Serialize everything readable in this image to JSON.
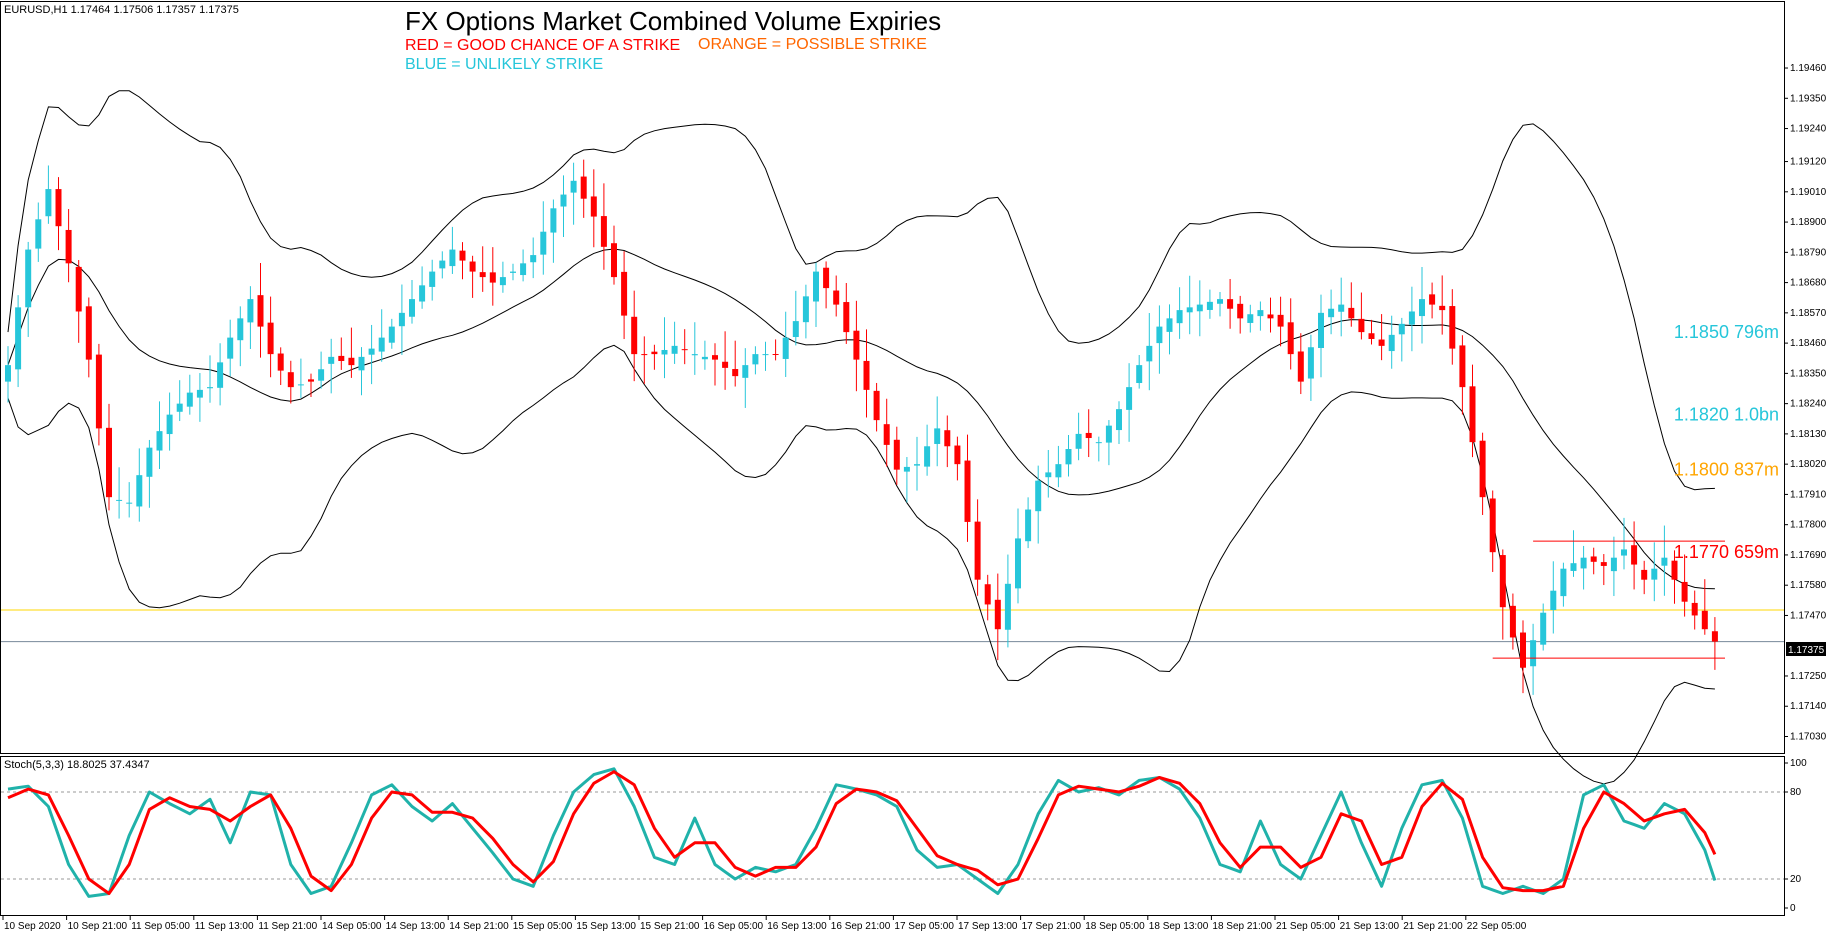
{
  "symbol_header": "EURUSD,H1  1.17464 1.17506 1.17357 1.17375",
  "stoch_header": "Stoch(5,3,3) 18.8025 37.4347",
  "colors": {
    "up": "#26c6da",
    "down": "#ff0000",
    "bands": "#000000",
    "stoch_main": "#20b2aa",
    "stoch_signal": "#ff0000",
    "level_yellow": "#ffd700",
    "price_line": "#778899",
    "strike_blue": "#26c6da",
    "strike_orange": "#ffa500",
    "strike_red": "#ff0000"
  },
  "chart_data": [
    {
      "type": "candlestick",
      "title": "FX Options Market Combined Volume Expiries",
      "legend": [
        {
          "text": "RED = GOOD CHANCE OF A STRIKE",
          "color": "#ff0000"
        },
        {
          "text": "ORANGE = POSSIBLE STRIKE",
          "color": "#ff6600"
        },
        {
          "text": "BLUE = UNLIKELY STRIKE",
          "color": "#26c6da"
        }
      ],
      "ylim": [
        1.1697,
        1.197
      ],
      "y_ticks": [
        "1.19460",
        "1.19350",
        "1.19240",
        "1.19120",
        "1.19010",
        "1.18900",
        "1.18790",
        "1.18680",
        "1.18570",
        "1.18460",
        "1.18350",
        "1.18240",
        "1.18130",
        "1.18020",
        "1.17910",
        "1.17800",
        "1.17690",
        "1.17580",
        "1.17470",
        "1.17250",
        "1.17140",
        "1.17030"
      ],
      "x_ticks": [
        "10 Sep 2020",
        "10 Sep 21:00",
        "11 Sep 05:00",
        "11 Sep 13:00",
        "11 Sep 21:00",
        "14 Sep 05:00",
        "14 Sep 13:00",
        "14 Sep 21:00",
        "15 Sep 05:00",
        "15 Sep 13:00",
        "15 Sep 21:00",
        "16 Sep 05:00",
        "16 Sep 13:00",
        "16 Sep 21:00",
        "17 Sep 05:00",
        "17 Sep 13:00",
        "17 Sep 21:00",
        "18 Sep 05:00",
        "18 Sep 13:00",
        "18 Sep 21:00",
        "21 Sep 05:00",
        "21 Sep 13:00",
        "21 Sep 21:00",
        "22 Sep 05:00"
      ],
      "current_price": "1.17375",
      "current_price_value": 1.17375,
      "strikes": [
        {
          "price": 1.185,
          "label": "1.1850 796m",
          "color": "#26c6da"
        },
        {
          "price": 1.182,
          "label": "1.1820 1.0bn",
          "color": "#26c6da"
        },
        {
          "price": 1.18,
          "label": "1.1800 837m",
          "color": "#ffa500"
        },
        {
          "price": 1.177,
          "label": "1.1770 659m",
          "color": "#ff0000"
        }
      ],
      "horizontal_levels": [
        {
          "price": 1.1749,
          "color": "#ffd700"
        },
        {
          "price": 1.17375,
          "color": "#778899"
        }
      ],
      "range_lines": [
        {
          "price": 1.1774,
          "from_bar": 151,
          "to_bar": 170,
          "color": "#ff0000"
        },
        {
          "price": 1.17315,
          "from_bar": 147,
          "to_bar": 170,
          "color": "#ff0000"
        }
      ],
      "close_path": [
        [
          0,
          1.1838
        ],
        [
          2,
          1.188
        ],
        [
          4,
          1.1902
        ],
        [
          6,
          1.1875
        ],
        [
          8,
          1.184
        ],
        [
          10,
          1.179
        ],
        [
          12,
          1.1788
        ],
        [
          14,
          1.1808
        ],
        [
          16,
          1.182
        ],
        [
          18,
          1.1828
        ],
        [
          20,
          1.183
        ],
        [
          22,
          1.1848
        ],
        [
          24,
          1.1862
        ],
        [
          26,
          1.1842
        ],
        [
          28,
          1.183
        ],
        [
          30,
          1.1832
        ],
        [
          32,
          1.1841
        ],
        [
          34,
          1.1838
        ],
        [
          36,
          1.1844
        ],
        [
          38,
          1.1852
        ],
        [
          40,
          1.1862
        ],
        [
          42,
          1.1872
        ],
        [
          44,
          1.188
        ],
        [
          46,
          1.1872
        ],
        [
          48,
          1.1868
        ],
        [
          50,
          1.1872
        ],
        [
          52,
          1.1878
        ],
        [
          54,
          1.1895
        ],
        [
          56,
          1.1905
        ],
        [
          58,
          1.1892
        ],
        [
          60,
          1.187
        ],
        [
          62,
          1.1842
        ],
        [
          64,
          1.1842
        ],
        [
          66,
          1.1845
        ],
        [
          68,
          1.1842
        ],
        [
          70,
          1.184
        ],
        [
          72,
          1.1834
        ],
        [
          74,
          1.1842
        ],
        [
          76,
          1.1842
        ],
        [
          78,
          1.1854
        ],
        [
          80,
          1.1872
        ],
        [
          82,
          1.186
        ],
        [
          84,
          1.184
        ],
        [
          86,
          1.1818
        ],
        [
          88,
          1.18
        ],
        [
          90,
          1.1802
        ],
        [
          92,
          1.1815
        ],
        [
          94,
          1.1802
        ],
        [
          96,
          1.176
        ],
        [
          98,
          1.1742
        ],
        [
          100,
          1.1775
        ],
        [
          102,
          1.1796
        ],
        [
          104,
          1.1802
        ],
        [
          106,
          1.1813
        ],
        [
          108,
          1.181
        ],
        [
          110,
          1.1822
        ],
        [
          112,
          1.1838
        ],
        [
          114,
          1.1852
        ],
        [
          116,
          1.1858
        ],
        [
          118,
          1.186
        ],
        [
          120,
          1.1862
        ],
        [
          122,
          1.1855
        ],
        [
          124,
          1.1858
        ],
        [
          126,
          1.1852
        ],
        [
          128,
          1.1832
        ],
        [
          130,
          1.1857
        ],
        [
          132,
          1.186
        ],
        [
          134,
          1.185
        ],
        [
          136,
          1.1845
        ],
        [
          138,
          1.1853
        ],
        [
          140,
          1.1862
        ],
        [
          142,
          1.1858
        ],
        [
          144,
          1.183
        ],
        [
          146,
          1.179
        ],
        [
          148,
          1.175
        ],
        [
          150,
          1.1728
        ],
        [
          152,
          1.1748
        ],
        [
          154,
          1.1764
        ],
        [
          156,
          1.1768
        ],
        [
          158,
          1.1765
        ],
        [
          160,
          1.1771
        ],
        [
          162,
          1.176
        ],
        [
          164,
          1.1768
        ],
        [
          166,
          1.1752
        ],
        [
          168,
          1.1742
        ],
        [
          169,
          1.17375
        ]
      ],
      "stochastic": {
        "ylim": [
          0,
          100
        ],
        "levels": [
          80,
          20
        ],
        "y_ticks": [
          "100",
          "80",
          "20",
          "0"
        ],
        "main_path": [
          [
            0,
            82
          ],
          [
            2,
            84
          ],
          [
            4,
            70
          ],
          [
            6,
            30
          ],
          [
            8,
            8
          ],
          [
            10,
            10
          ],
          [
            12,
            50
          ],
          [
            14,
            80
          ],
          [
            16,
            72
          ],
          [
            18,
            65
          ],
          [
            20,
            75
          ],
          [
            22,
            45
          ],
          [
            24,
            80
          ],
          [
            26,
            78
          ],
          [
            28,
            30
          ],
          [
            30,
            10
          ],
          [
            32,
            15
          ],
          [
            34,
            45
          ],
          [
            36,
            78
          ],
          [
            38,
            85
          ],
          [
            40,
            70
          ],
          [
            42,
            60
          ],
          [
            44,
            72
          ],
          [
            46,
            55
          ],
          [
            48,
            38
          ],
          [
            50,
            20
          ],
          [
            52,
            15
          ],
          [
            54,
            50
          ],
          [
            56,
            80
          ],
          [
            58,
            92
          ],
          [
            60,
            96
          ],
          [
            62,
            70
          ],
          [
            64,
            35
          ],
          [
            66,
            30
          ],
          [
            68,
            62
          ],
          [
            70,
            30
          ],
          [
            72,
            20
          ],
          [
            74,
            28
          ],
          [
            76,
            25
          ],
          [
            78,
            30
          ],
          [
            80,
            55
          ],
          [
            82,
            85
          ],
          [
            84,
            82
          ],
          [
            86,
            78
          ],
          [
            88,
            70
          ],
          [
            90,
            40
          ],
          [
            92,
            28
          ],
          [
            94,
            30
          ],
          [
            96,
            20
          ],
          [
            98,
            10
          ],
          [
            100,
            30
          ],
          [
            102,
            65
          ],
          [
            104,
            88
          ],
          [
            106,
            80
          ],
          [
            108,
            83
          ],
          [
            110,
            78
          ],
          [
            112,
            88
          ],
          [
            114,
            90
          ],
          [
            116,
            82
          ],
          [
            118,
            62
          ],
          [
            120,
            30
          ],
          [
            122,
            25
          ],
          [
            124,
            60
          ],
          [
            126,
            30
          ],
          [
            128,
            20
          ],
          [
            130,
            50
          ],
          [
            132,
            80
          ],
          [
            134,
            45
          ],
          [
            136,
            15
          ],
          [
            138,
            55
          ],
          [
            140,
            85
          ],
          [
            142,
            88
          ],
          [
            144,
            62
          ],
          [
            146,
            15
          ],
          [
            148,
            10
          ],
          [
            150,
            15
          ],
          [
            152,
            10
          ],
          [
            154,
            20
          ],
          [
            156,
            78
          ],
          [
            158,
            85
          ],
          [
            160,
            60
          ],
          [
            162,
            55
          ],
          [
            164,
            72
          ],
          [
            166,
            65
          ],
          [
            168,
            40
          ],
          [
            169,
            19
          ]
        ],
        "signal_path": [
          [
            0,
            76
          ],
          [
            2,
            82
          ],
          [
            4,
            78
          ],
          [
            6,
            50
          ],
          [
            8,
            20
          ],
          [
            10,
            10
          ],
          [
            12,
            30
          ],
          [
            14,
            68
          ],
          [
            16,
            76
          ],
          [
            18,
            70
          ],
          [
            20,
            68
          ],
          [
            22,
            60
          ],
          [
            24,
            70
          ],
          [
            26,
            78
          ],
          [
            28,
            55
          ],
          [
            30,
            22
          ],
          [
            32,
            12
          ],
          [
            34,
            30
          ],
          [
            36,
            62
          ],
          [
            38,
            80
          ],
          [
            40,
            78
          ],
          [
            42,
            66
          ],
          [
            44,
            66
          ],
          [
            46,
            62
          ],
          [
            48,
            48
          ],
          [
            50,
            30
          ],
          [
            52,
            18
          ],
          [
            54,
            32
          ],
          [
            56,
            65
          ],
          [
            58,
            86
          ],
          [
            60,
            94
          ],
          [
            62,
            85
          ],
          [
            64,
            55
          ],
          [
            66,
            35
          ],
          [
            68,
            45
          ],
          [
            70,
            45
          ],
          [
            72,
            28
          ],
          [
            74,
            22
          ],
          [
            76,
            28
          ],
          [
            78,
            28
          ],
          [
            80,
            42
          ],
          [
            82,
            72
          ],
          [
            84,
            82
          ],
          [
            86,
            80
          ],
          [
            88,
            74
          ],
          [
            90,
            55
          ],
          [
            92,
            36
          ],
          [
            94,
            30
          ],
          [
            96,
            26
          ],
          [
            98,
            16
          ],
          [
            100,
            20
          ],
          [
            102,
            48
          ],
          [
            104,
            78
          ],
          [
            106,
            84
          ],
          [
            108,
            82
          ],
          [
            110,
            80
          ],
          [
            112,
            84
          ],
          [
            114,
            90
          ],
          [
            116,
            86
          ],
          [
            118,
            72
          ],
          [
            120,
            45
          ],
          [
            122,
            28
          ],
          [
            124,
            42
          ],
          [
            126,
            42
          ],
          [
            128,
            28
          ],
          [
            130,
            35
          ],
          [
            132,
            65
          ],
          [
            134,
            60
          ],
          [
            136,
            30
          ],
          [
            138,
            35
          ],
          [
            140,
            70
          ],
          [
            142,
            86
          ],
          [
            144,
            75
          ],
          [
            146,
            35
          ],
          [
            148,
            14
          ],
          [
            150,
            12
          ],
          [
            152,
            12
          ],
          [
            154,
            15
          ],
          [
            156,
            55
          ],
          [
            158,
            80
          ],
          [
            160,
            72
          ],
          [
            162,
            60
          ],
          [
            164,
            65
          ],
          [
            166,
            68
          ],
          [
            168,
            52
          ],
          [
            169,
            37
          ]
        ]
      },
      "grid": false,
      "xlabel": "",
      "ylabel": ""
    }
  ]
}
